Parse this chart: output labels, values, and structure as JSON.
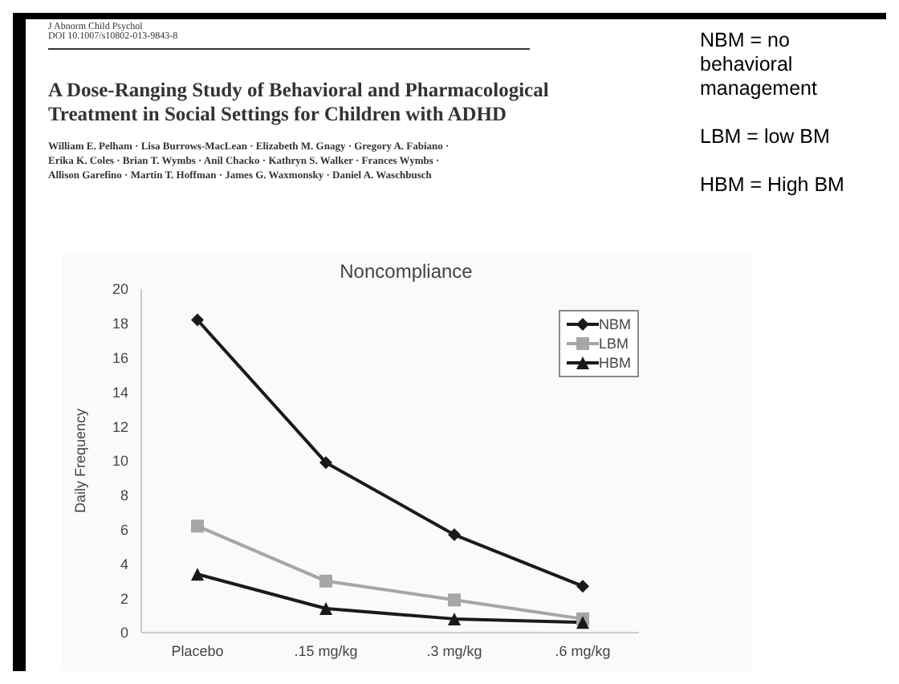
{
  "chart_data": {
    "type": "line",
    "title": "Noncompliance",
    "ylabel": "Daily Frequency",
    "categories": [
      "Placebo",
      ".15 mg/kg",
      ".3 mg/kg",
      ".6 mg/kg"
    ],
    "series": [
      {
        "name": "NBM",
        "color": "#1a1a1a",
        "marker": "diamond",
        "values": [
          18.2,
          9.9,
          5.7,
          2.7
        ]
      },
      {
        "name": "LBM",
        "color": "#a6a6a6",
        "marker": "square",
        "values": [
          6.2,
          3.0,
          1.9,
          0.8
        ]
      },
      {
        "name": "HBM",
        "color": "#1a1a1a",
        "marker": "triangle",
        "values": [
          3.4,
          1.4,
          0.8,
          0.6
        ]
      }
    ],
    "ylim": [
      0,
      20
    ],
    "yticks": [
      0,
      2,
      4,
      6,
      8,
      10,
      12,
      14,
      16,
      18,
      20
    ],
    "grid": false,
    "legend": "top right",
    "line_style": "solid",
    "annotations": [
      "J Abnorm Child Psychol",
      "DOI 10.1007/s10802-013-9843-8",
      "A Dose-Ranging Study of Behavioral and Pharmacological Treatment in Social Settings for Children with ADHD",
      "William E. Pelham · Lisa Burrows-MacLean · Elizabeth M. Gnagy · Gregory A. Fabiano · Erika K. Coles · Brian T. Wymbs · Anil Chacko · Kathryn S. Walker · Frances Wymbs · Allison Garefino · Martin T. Hoffman · James G. Waxmonsky · Daniel A. Waschbusch",
      "NBM = no behavioral management",
      "LBM = low BM",
      "HBM = High BM"
    ]
  }
}
